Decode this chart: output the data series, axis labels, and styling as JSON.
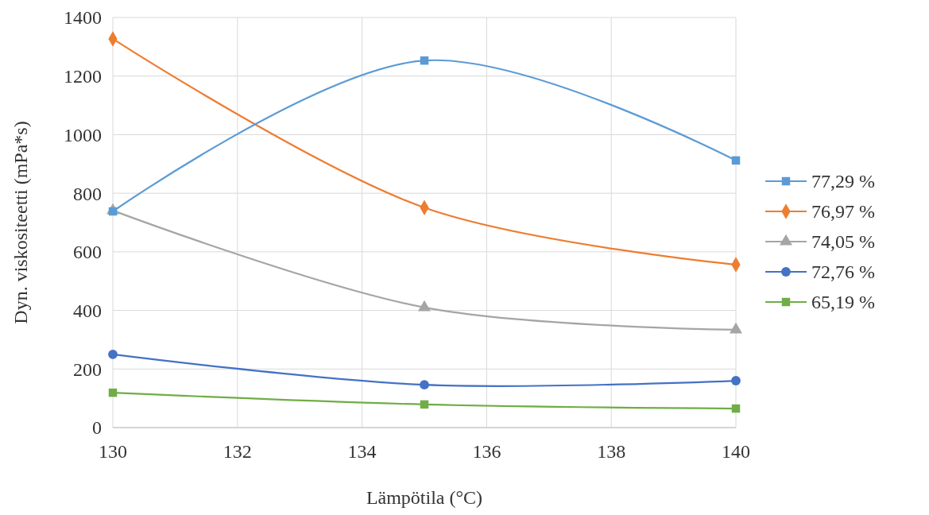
{
  "chart_data": {
    "type": "line",
    "xlabel": "Lämpötila (°C)",
    "ylabel": "Dyn. viskositeetti (mPa*s)",
    "x": [
      130,
      135,
      140
    ],
    "xlim": [
      130,
      140
    ],
    "xticks": [
      130,
      132,
      134,
      136,
      138,
      140
    ],
    "ylim": [
      0,
      1400
    ],
    "yticks": [
      0,
      200,
      400,
      600,
      800,
      1000,
      1200,
      1400
    ],
    "grid": true,
    "legend": "right",
    "series": [
      {
        "name": "77,29 %",
        "color": "#5b9bd5",
        "marker": "square",
        "values": [
          738,
          1253,
          912
        ]
      },
      {
        "name": "76,97 %",
        "color": "#ed7d31",
        "marker": "diamond",
        "values": [
          1327,
          751,
          556
        ]
      },
      {
        "name": "74,05 %",
        "color": "#a5a5a5",
        "marker": "triangle",
        "values": [
          741,
          410,
          334
        ]
      },
      {
        "name": "72,76 %",
        "color": "#4472c4",
        "marker": "circle",
        "values": [
          250,
          146,
          160
        ]
      },
      {
        "name": "65,19 %",
        "color": "#70ad47",
        "marker": "square",
        "values": [
          119,
          79,
          65
        ]
      }
    ]
  }
}
